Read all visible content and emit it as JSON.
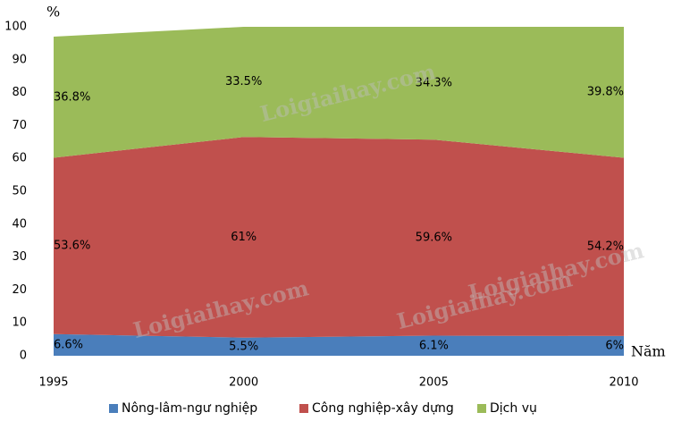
{
  "chart_data": {
    "type": "stacked_area",
    "y_label": "%",
    "x_label": "Năm",
    "watermark": "Loigiaihay.com",
    "x": [
      1995,
      2000,
      2005,
      2010
    ],
    "xlim": [
      1995,
      2010
    ],
    "xticks": [
      1995,
      2000,
      2005,
      2010
    ],
    "ylim": [
      0,
      100
    ],
    "yticks": [
      0,
      10,
      20,
      30,
      40,
      50,
      60,
      70,
      80,
      90,
      100
    ],
    "series": [
      {
        "name": "Nông-lâm-ngư nghiệp",
        "color": "#4a7ebb",
        "values": [
          6.6,
          5.5,
          6.1,
          6
        ],
        "value_labels": [
          "6.6%",
          "5.5%",
          "6.1%",
          "6%"
        ]
      },
      {
        "name": "Công nghiệp-xây dựng",
        "color": "#c0504d",
        "values": [
          53.6,
          61,
          59.6,
          54.2
        ],
        "value_labels": [
          "53.6%",
          "61%",
          "59.6%",
          "54.2%"
        ]
      },
      {
        "name": "Dịch vụ",
        "color": "#9bbb59",
        "values": [
          36.8,
          33.5,
          34.3,
          39.8
        ],
        "value_labels": [
          "36.8%",
          "33.5%",
          "34.3%",
          "39.8%"
        ]
      }
    ],
    "legend": "bottom"
  }
}
